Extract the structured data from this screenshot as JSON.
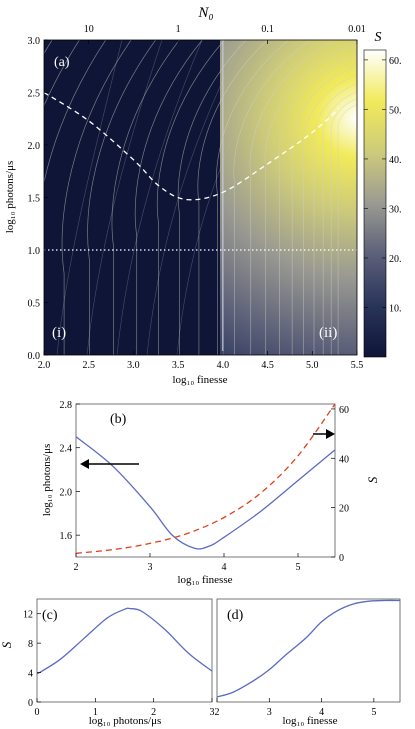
{
  "chart_data": [
    {
      "type": "heatmap",
      "panel_label": "(a)",
      "region_labels": [
        "(i)",
        "(ii)"
      ],
      "xlabel": "log₁₀ finesse",
      "ylabel": "log₁₀ photons/μs",
      "top_axis_label": "N₀",
      "top_ticks": [
        "10",
        "1",
        "0.1",
        "0.01"
      ],
      "top_tick_values_log10_finesse": [
        2.5,
        3.5,
        4.5,
        5.5
      ],
      "xlim": [
        2.0,
        5.5
      ],
      "ylim": [
        0.0,
        3.0
      ],
      "xticks": [
        "2.0",
        "2.5",
        "3.0",
        "3.5",
        "4.0",
        "4.5",
        "5.0",
        "5.5"
      ],
      "yticks": [
        "0.0",
        "0.5",
        "1.0",
        "1.5",
        "2.0",
        "2.5",
        "3.0"
      ],
      "colorbar": {
        "label": "S",
        "range": [
          0,
          62
        ],
        "ticks": [
          "10.",
          "20.",
          "30.",
          "40.",
          "50.",
          "60."
        ],
        "tick_values": [
          10,
          20,
          30,
          40,
          50,
          60
        ],
        "colormap": [
          "#0e1537",
          "#29345a",
          "#5c6079",
          "#9a9a92",
          "#cdcb7a",
          "#f1ea5a",
          "#ffffff"
        ]
      },
      "optimum_curve": {
        "style": "dashed",
        "x": [
          2.0,
          2.5,
          3.0,
          3.3,
          3.6,
          4.0,
          4.5,
          5.0,
          5.3
        ],
        "y": [
          2.5,
          2.23,
          1.86,
          1.6,
          1.48,
          1.55,
          1.82,
          2.12,
          2.35
        ]
      },
      "reference_lines": [
        {
          "orientation": "horizontal",
          "y": 1.0,
          "style": "dotted"
        },
        {
          "orientation": "vertical",
          "x": 4.0,
          "style": "solid"
        }
      ]
    },
    {
      "type": "line",
      "panel_label": "(b)",
      "xlabel": "log₁₀ finesse",
      "ylabel": "log₁₀ photons/μs",
      "ylabel_right": "S",
      "xlim": [
        2.0,
        5.5
      ],
      "ylim": [
        1.4,
        2.8
      ],
      "ylim_right": [
        0,
        62
      ],
      "xticks": [
        "2",
        "3",
        "4",
        "5"
      ],
      "yticks": [
        "1.6",
        "2.0",
        "2.4",
        "2.8"
      ],
      "yticks_right": [
        "0",
        "20",
        "40",
        "60"
      ],
      "series": [
        {
          "axis": "left",
          "color": "#5b6ac4",
          "style": "solid",
          "x": [
            2.0,
            2.5,
            3.0,
            3.3,
            3.6,
            3.8,
            4.0,
            4.5,
            5.0,
            5.5
          ],
          "y": [
            2.5,
            2.23,
            1.86,
            1.6,
            1.48,
            1.5,
            1.58,
            1.82,
            2.1,
            2.38
          ]
        },
        {
          "axis": "right",
          "color": "#e0401c",
          "style": "dashed",
          "x": [
            2.0,
            2.5,
            3.0,
            3.5,
            4.0,
            4.5,
            5.0,
            5.5
          ],
          "y": [
            1.5,
            3.0,
            5.5,
            9.5,
            16.0,
            26.0,
            41.0,
            62.0
          ]
        }
      ]
    },
    {
      "type": "line",
      "panel_label": "(c)",
      "xlabel": "log₁₀ photons/μs",
      "ylabel": "S",
      "xlim": [
        0,
        3
      ],
      "ylim": [
        0,
        14
      ],
      "xticks": [
        "0",
        "1",
        "2",
        "3"
      ],
      "yticks": [
        "0",
        "4",
        "8",
        "12"
      ],
      "series": [
        {
          "color": "#5b6ac4",
          "style": "solid",
          "x": [
            0.0,
            0.4,
            0.8,
            1.2,
            1.5,
            1.6,
            1.8,
            2.2,
            2.6,
            3.0
          ],
          "y": [
            3.8,
            5.8,
            8.6,
            11.4,
            12.6,
            12.7,
            12.3,
            9.8,
            6.6,
            4.2
          ]
        }
      ]
    },
    {
      "type": "line",
      "panel_label": "(d)",
      "xlabel": "log₁₀ finesse",
      "xlim": [
        2.0,
        5.5
      ],
      "ylim": [
        0,
        14
      ],
      "xticks": [
        "2",
        "3",
        "4",
        "5"
      ],
      "series": [
        {
          "color": "#5b6ac4",
          "style": "solid",
          "x": [
            2.0,
            2.3,
            2.7,
            3.0,
            3.3,
            3.7,
            4.0,
            4.3,
            4.6,
            4.9,
            5.2,
            5.5
          ],
          "y": [
            0.7,
            1.3,
            2.9,
            4.4,
            6.3,
            8.7,
            10.9,
            12.4,
            13.3,
            13.7,
            13.8,
            13.8
          ]
        }
      ]
    }
  ]
}
